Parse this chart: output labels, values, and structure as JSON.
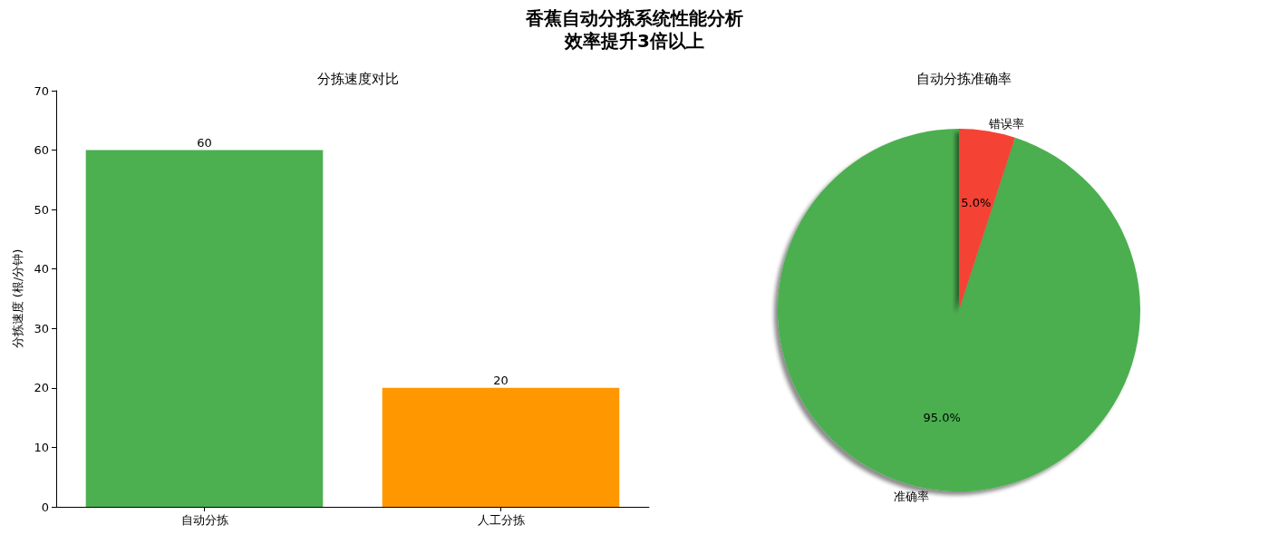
{
  "chart_data": [
    {
      "type": "other",
      "title": "香蕉自动分拣系统性能分析",
      "subtitle": "效率提升3倍以上"
    },
    {
      "type": "bar",
      "title": "分拣速度对比",
      "ylabel": "分拣速度 (根/分钟)",
      "categories": [
        "自动分拣",
        "人工分拣"
      ],
      "values": [
        60,
        20
      ],
      "colors": [
        "#4caf50",
        "#ff9800"
      ],
      "ylim": [
        0,
        70
      ],
      "yticks": [
        0,
        10,
        20,
        30,
        40,
        50,
        60,
        70
      ],
      "data_labels": true,
      "grid": false,
      "legend": false
    },
    {
      "type": "pie",
      "title": "自动分拣准确率",
      "categories": [
        "准确率",
        "错误率"
      ],
      "values": [
        95,
        5
      ],
      "colors": [
        "#4caf50",
        "#f44336"
      ],
      "value_labels": [
        "95.0%",
        "5.0%"
      ],
      "legend": false
    }
  ]
}
